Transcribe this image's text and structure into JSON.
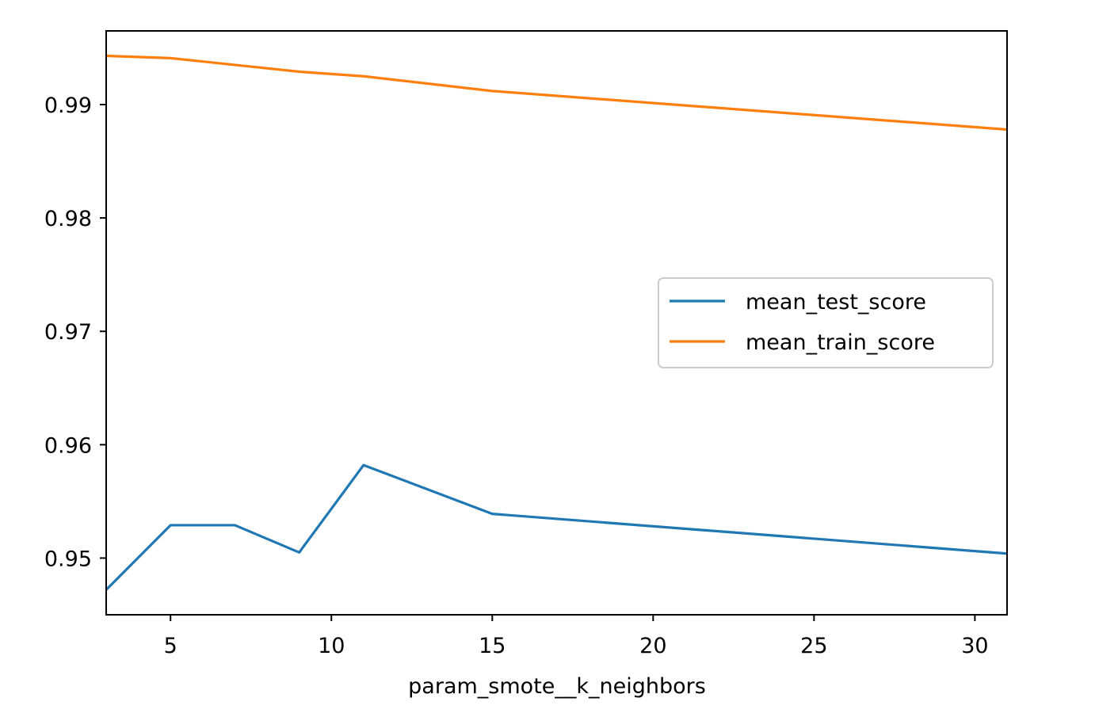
{
  "chart_data": {
    "type": "line",
    "title": "",
    "xlabel": "param_smote__k_neighbors",
    "ylabel": "",
    "xlim": [
      3,
      31
    ],
    "ylim": [
      0.945,
      0.9965
    ],
    "xticks": [
      5,
      10,
      15,
      20,
      25,
      30
    ],
    "xtick_labels": [
      "5",
      "10",
      "15",
      "20",
      "25",
      "30"
    ],
    "yticks": [
      0.95,
      0.96,
      0.97,
      0.98,
      0.99
    ],
    "ytick_labels": [
      "0.95",
      "0.96",
      "0.97",
      "0.98",
      "0.99"
    ],
    "grid": false,
    "legend_position": "center-right",
    "series": [
      {
        "name": "mean_test_score",
        "color": "#1f77b4",
        "x": [
          3,
          5,
          7,
          9,
          11,
          15,
          31
        ],
        "y": [
          0.9472,
          0.9529,
          0.9529,
          0.9505,
          0.9582,
          0.9539,
          0.9504
        ]
      },
      {
        "name": "mean_train_score",
        "color": "#ff7f0e",
        "x": [
          3,
          5,
          7,
          9,
          11,
          15,
          31
        ],
        "y": [
          0.9943,
          0.9941,
          0.9935,
          0.9929,
          0.9925,
          0.9912,
          0.9878
        ]
      }
    ]
  }
}
